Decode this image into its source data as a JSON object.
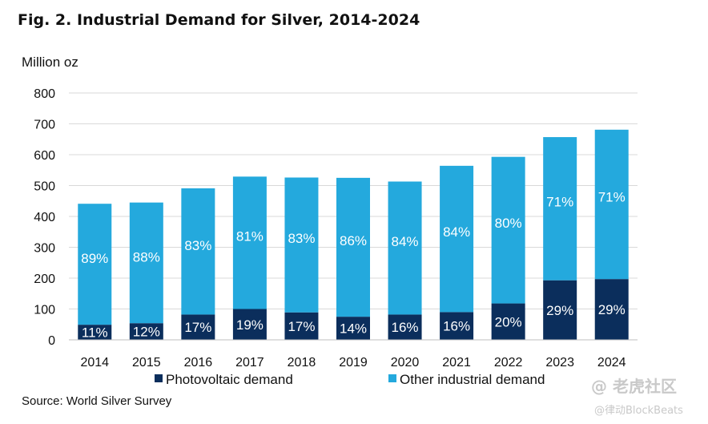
{
  "figure": {
    "title": "Fig. 2. Industrial Demand for Silver, 2014-2024",
    "unit_label": "Million oz",
    "source": "Source: World Silver Survey"
  },
  "watermark": {
    "line1": "@ 老虎社区",
    "line2": "@律动BlockBeats"
  },
  "chart_data": {
    "type": "bar",
    "stacked": true,
    "title": "Fig. 2. Industrial Demand for Silver, 2014-2024",
    "xlabel": "",
    "ylabel": "Million oz",
    "ylim": [
      0,
      800
    ],
    "yticks": [
      "0",
      "100",
      "200",
      "300",
      "400",
      "500",
      "600",
      "700",
      "800"
    ],
    "grid": true,
    "legend_position": "bottom",
    "categories": [
      "2014",
      "2015",
      "2016",
      "2017",
      "2018",
      "2019",
      "2020",
      "2021",
      "2022",
      "2023",
      "2024"
    ],
    "series": [
      {
        "name": "Photovoltaic demand",
        "color": "#0b2e5c",
        "values": [
          49,
          54,
          82,
          100,
          89,
          75,
          82,
          90,
          118,
          193,
          197
        ],
        "labels": [
          "11%",
          "12%",
          "17%",
          "19%",
          "17%",
          "14%",
          "16%",
          "16%",
          "20%",
          "29%",
          "29%"
        ]
      },
      {
        "name": "Other industrial demand",
        "color": "#24a9dd",
        "values": [
          392,
          391,
          409,
          429,
          437,
          450,
          431,
          474,
          475,
          464,
          484
        ],
        "labels": [
          "89%",
          "88%",
          "83%",
          "81%",
          "83%",
          "86%",
          "84%",
          "84%",
          "80%",
          "71%",
          "71%"
        ]
      }
    ]
  }
}
